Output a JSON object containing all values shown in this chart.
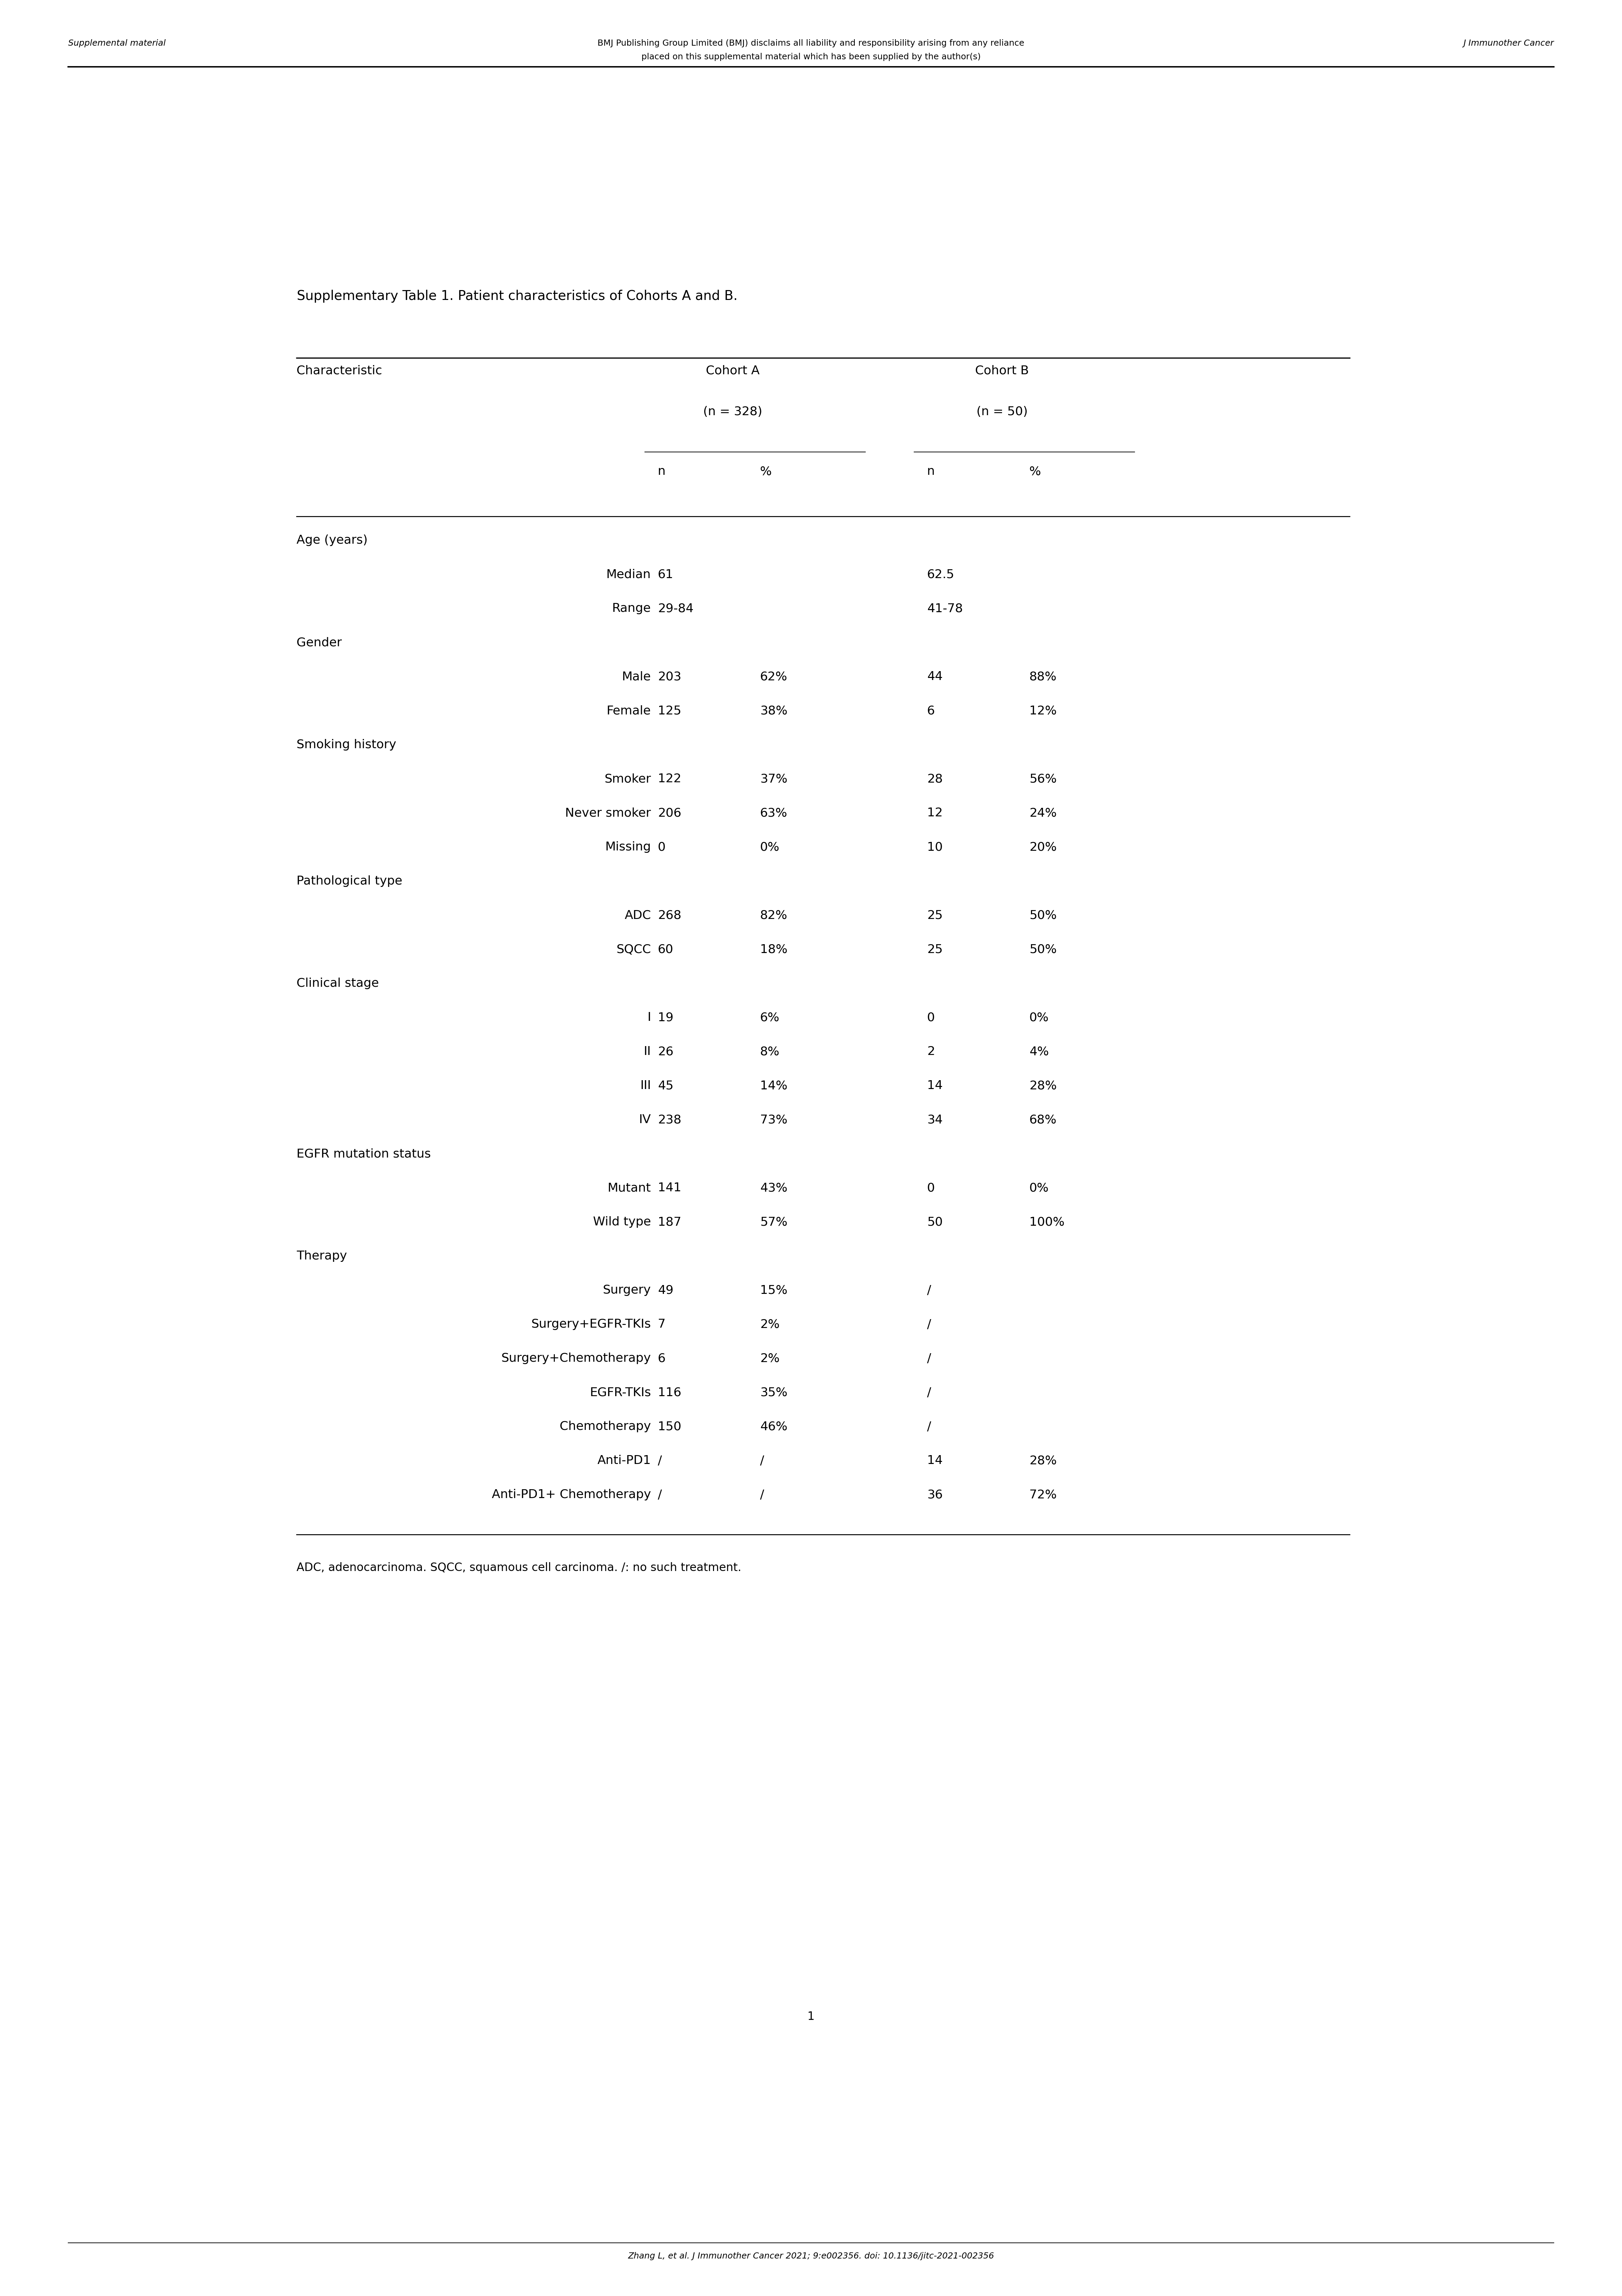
{
  "title": "Supplementary Table 1. Patient characteristics of Cohorts A and B.",
  "rows": [
    {
      "label": "Age (years)",
      "category": true,
      "col1": "",
      "col2": "",
      "col3": "",
      "col4": ""
    },
    {
      "label": "Median",
      "category": false,
      "col1": "61",
      "col2": "",
      "col3": "62.5",
      "col4": ""
    },
    {
      "label": "Range",
      "category": false,
      "col1": "29-84",
      "col2": "",
      "col3": "41-78",
      "col4": ""
    },
    {
      "label": "Gender",
      "category": true,
      "col1": "",
      "col2": "",
      "col3": "",
      "col4": ""
    },
    {
      "label": "Male",
      "category": false,
      "col1": "203",
      "col2": "62%",
      "col3": "44",
      "col4": "88%"
    },
    {
      "label": "Female",
      "category": false,
      "col1": "125",
      "col2": "38%",
      "col3": "6",
      "col4": "12%"
    },
    {
      "label": "Smoking history",
      "category": true,
      "col1": "",
      "col2": "",
      "col3": "",
      "col4": ""
    },
    {
      "label": "Smoker",
      "category": false,
      "col1": "122",
      "col2": "37%",
      "col3": "28",
      "col4": "56%"
    },
    {
      "label": "Never smoker",
      "category": false,
      "col1": "206",
      "col2": "63%",
      "col3": "12",
      "col4": "24%"
    },
    {
      "label": "Missing",
      "category": false,
      "col1": "0",
      "col2": "0%",
      "col3": "10",
      "col4": "20%"
    },
    {
      "label": "Pathological type",
      "category": true,
      "col1": "",
      "col2": "",
      "col3": "",
      "col4": ""
    },
    {
      "label": "ADC",
      "category": false,
      "col1": "268",
      "col2": "82%",
      "col3": "25",
      "col4": "50%"
    },
    {
      "label": "SQCC",
      "category": false,
      "col1": "60",
      "col2": "18%",
      "col3": "25",
      "col4": "50%"
    },
    {
      "label": "Clinical stage",
      "category": true,
      "col1": "",
      "col2": "",
      "col3": "",
      "col4": ""
    },
    {
      "label": "I",
      "category": false,
      "col1": "19",
      "col2": "6%",
      "col3": "0",
      "col4": "0%"
    },
    {
      "label": "II",
      "category": false,
      "col1": "26",
      "col2": "8%",
      "col3": "2",
      "col4": "4%"
    },
    {
      "label": "III",
      "category": false,
      "col1": "45",
      "col2": "14%",
      "col3": "14",
      "col4": "28%"
    },
    {
      "label": "IV",
      "category": false,
      "col1": "238",
      "col2": "73%",
      "col3": "34",
      "col4": "68%"
    },
    {
      "label": "EGFR mutation status",
      "category": true,
      "col1": "",
      "col2": "",
      "col3": "",
      "col4": ""
    },
    {
      "label": "Mutant",
      "category": false,
      "col1": "141",
      "col2": "43%",
      "col3": "0",
      "col4": "0%"
    },
    {
      "label": "Wild type",
      "category": false,
      "col1": "187",
      "col2": "57%",
      "col3": "50",
      "col4": "100%"
    },
    {
      "label": "Therapy",
      "category": true,
      "col1": "",
      "col2": "",
      "col3": "",
      "col4": ""
    },
    {
      "label": "Surgery",
      "category": false,
      "col1": "49",
      "col2": "15%",
      "col3": "/",
      "col4": ""
    },
    {
      "label": "Surgery+EGFR-TKIs",
      "category": false,
      "col1": "7",
      "col2": "2%",
      "col3": "/",
      "col4": ""
    },
    {
      "label": "Surgery+Chemotherapy",
      "category": false,
      "col1": "6",
      "col2": "2%",
      "col3": "/",
      "col4": ""
    },
    {
      "label": "EGFR-TKIs",
      "category": false,
      "col1": "116",
      "col2": "35%",
      "col3": "/",
      "col4": ""
    },
    {
      "label": "Chemotherapy",
      "category": false,
      "col1": "150",
      "col2": "46%",
      "col3": "/",
      "col4": ""
    },
    {
      "label": "Anti-PD1",
      "category": false,
      "col1": "/",
      "col2": "/",
      "col3": "14",
      "col4": "28%"
    },
    {
      "label": "Anti-PD1+ Chemotherapy",
      "category": false,
      "col1": "/",
      "col2": "/",
      "col3": "36",
      "col4": "72%"
    }
  ],
  "footnote": "ADC, adenocarcinoma. SQCC, squamous cell carcinoma. /: no such treatment.",
  "page_number": "1",
  "header_top_left": "Supplemental material",
  "header_top_center_line1": "BMJ Publishing Group Limited (BMJ) disclaims all liability and responsibility arising from any reliance",
  "header_top_center_line2": "placed on this supplemental material which has been supplied by the author(s)",
  "header_top_right": "J Immunother Cancer",
  "footer_text": "Zhang L, et al. J Immunother Cancer 2021; 9:e002356. doi: 10.1136/jitc-2021-002356"
}
